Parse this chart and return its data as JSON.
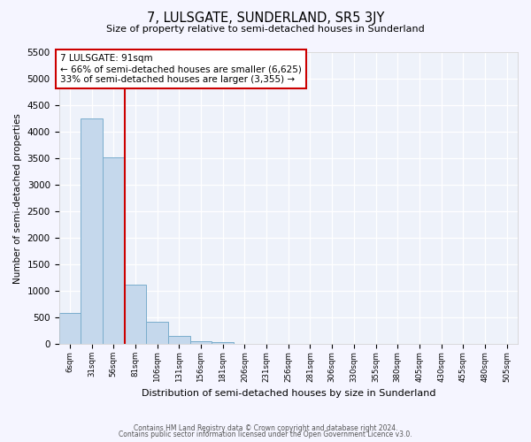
{
  "title": "7, LULSGATE, SUNDERLAND, SR5 3JY",
  "subtitle": "Size of property relative to semi-detached houses in Sunderland",
  "xlabel": "Distribution of semi-detached houses by size in Sunderland",
  "ylabel": "Number of semi-detached properties",
  "bar_color": "#c5d8ec",
  "bar_edge_color": "#7aadcc",
  "background_color": "#eef2fa",
  "grid_color": "#ffffff",
  "annotation_box_color": "#ffffff",
  "annotation_box_edge": "#cc0000",
  "vline_color": "#cc0000",
  "annotation_title": "7 LULSGATE: 91sqm",
  "annotation_line1": "← 66% of semi-detached houses are smaller (6,625)",
  "annotation_line2": "33% of semi-detached houses are larger (3,355) →",
  "bins": [
    "6sqm",
    "31sqm",
    "56sqm",
    "81sqm",
    "106sqm",
    "131sqm",
    "156sqm",
    "181sqm",
    "206sqm",
    "231sqm",
    "256sqm",
    "281sqm",
    "306sqm",
    "330sqm",
    "355sqm",
    "380sqm",
    "405sqm",
    "430sqm",
    "455sqm",
    "480sqm",
    "505sqm"
  ],
  "values": [
    580,
    4250,
    3520,
    1120,
    420,
    150,
    60,
    40,
    0,
    0,
    0,
    0,
    0,
    0,
    0,
    0,
    0,
    0,
    0,
    0,
    0
  ],
  "ylim": [
    0,
    5500
  ],
  "yticks": [
    0,
    500,
    1000,
    1500,
    2000,
    2500,
    3000,
    3500,
    4000,
    4500,
    5000,
    5500
  ],
  "footnote1": "Contains HM Land Registry data © Crown copyright and database right 2024.",
  "footnote2": "Contains public sector information licensed under the Open Government Licence v3.0."
}
